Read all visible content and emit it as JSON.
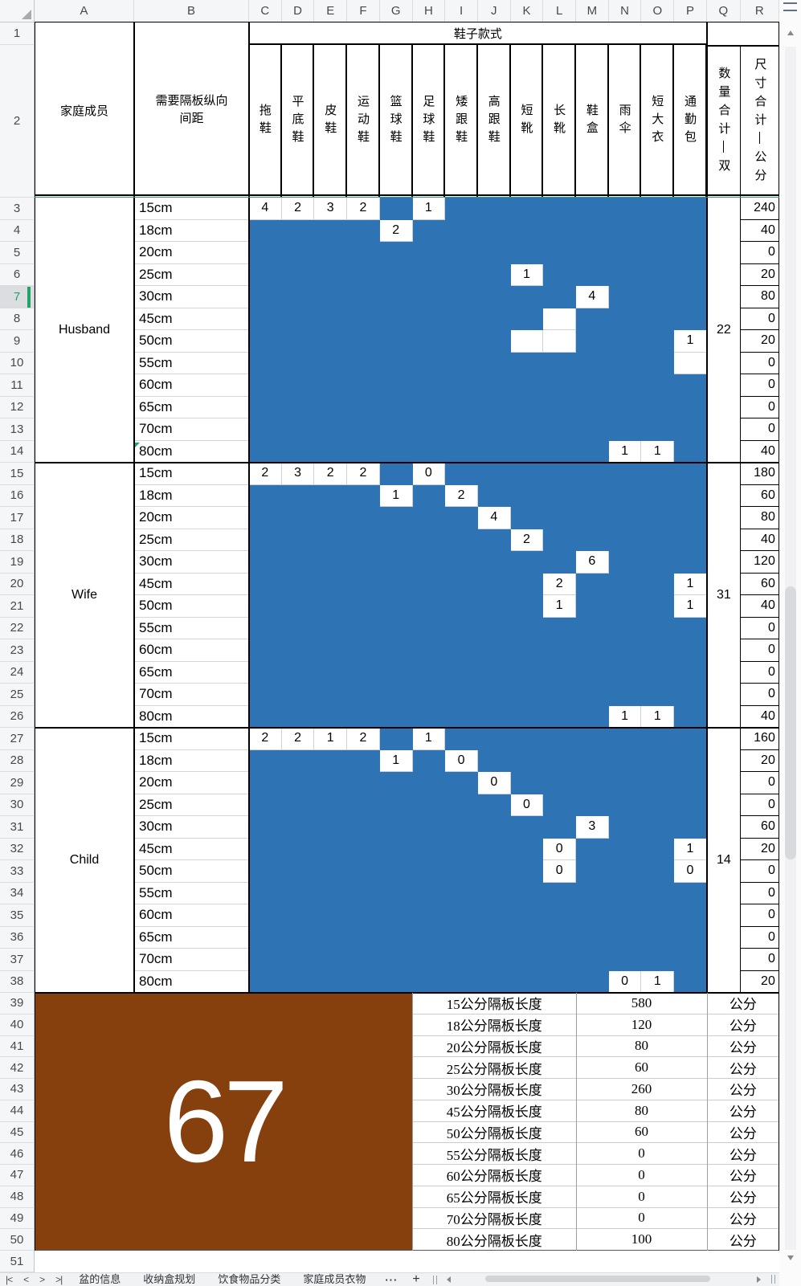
{
  "sheet": {
    "columns": [
      "A",
      "B",
      "C",
      "D",
      "E",
      "F",
      "G",
      "H",
      "I",
      "J",
      "K",
      "L",
      "M",
      "N",
      "O",
      "P",
      "Q",
      "R"
    ],
    "row_count": 51,
    "selected_row": 7,
    "header": {
      "group_title": "鞋子款式",
      "member_label": "家庭成员",
      "spacing_label": "需要隔板纵向间距",
      "shoe_types": [
        "拖鞋",
        "平底鞋",
        "皮鞋",
        "运动鞋",
        "篮球鞋",
        "足球鞋",
        "矮跟鞋",
        "高跟鞋",
        "短靴",
        "长靴",
        "鞋盒",
        "雨伞",
        "短大衣",
        "通勤包"
      ],
      "qty_total_label": "数量合计—双",
      "size_total_label": "尺寸合计—公分"
    },
    "spacings": [
      "15cm",
      "18cm",
      "20cm",
      "25cm",
      "30cm",
      "45cm",
      "50cm",
      "55cm",
      "60cm",
      "65cm",
      "70cm",
      "80cm"
    ],
    "members": [
      {
        "name": "Husband",
        "qty_total": 22,
        "sizes": [
          240,
          40,
          0,
          20,
          80,
          0,
          20,
          0,
          0,
          0,
          0,
          40
        ],
        "matrix": [
          [
            4,
            2,
            3,
            2,
            null,
            1,
            null,
            null,
            null,
            null,
            null,
            null,
            null,
            null
          ],
          [
            null,
            null,
            null,
            null,
            2,
            null,
            null,
            null,
            null,
            null,
            null,
            null,
            null,
            null
          ],
          [
            null,
            null,
            null,
            null,
            null,
            null,
            null,
            null,
            null,
            null,
            null,
            null,
            null,
            null
          ],
          [
            null,
            null,
            null,
            null,
            null,
            null,
            null,
            null,
            1,
            null,
            null,
            null,
            null,
            null
          ],
          [
            null,
            null,
            null,
            null,
            null,
            null,
            null,
            null,
            null,
            null,
            4,
            null,
            null,
            null
          ],
          [
            null,
            null,
            null,
            null,
            null,
            null,
            null,
            null,
            null,
            "",
            null,
            null,
            null,
            null
          ],
          [
            null,
            null,
            null,
            null,
            null,
            null,
            null,
            null,
            "",
            "",
            null,
            null,
            null,
            1
          ],
          [
            null,
            null,
            null,
            null,
            null,
            null,
            null,
            null,
            null,
            null,
            null,
            null,
            null,
            ""
          ],
          [
            null,
            null,
            null,
            null,
            null,
            null,
            null,
            null,
            null,
            null,
            null,
            null,
            null,
            null
          ],
          [
            null,
            null,
            null,
            null,
            null,
            null,
            null,
            null,
            null,
            null,
            null,
            null,
            null,
            null
          ],
          [
            null,
            null,
            null,
            null,
            null,
            null,
            null,
            null,
            null,
            null,
            null,
            null,
            null,
            null
          ],
          [
            null,
            null,
            null,
            null,
            null,
            null,
            null,
            null,
            null,
            null,
            null,
            1,
            1,
            null
          ]
        ]
      },
      {
        "name": "Wife",
        "qty_total": 31,
        "sizes": [
          180,
          60,
          80,
          40,
          120,
          60,
          40,
          0,
          0,
          0,
          0,
          40
        ],
        "matrix": [
          [
            2,
            3,
            2,
            2,
            null,
            0,
            null,
            null,
            null,
            null,
            null,
            null,
            null,
            null
          ],
          [
            null,
            null,
            null,
            null,
            1,
            null,
            2,
            null,
            null,
            null,
            null,
            null,
            null,
            null
          ],
          [
            null,
            null,
            null,
            null,
            null,
            null,
            null,
            4,
            null,
            null,
            null,
            null,
            null,
            null
          ],
          [
            null,
            null,
            null,
            null,
            null,
            null,
            null,
            null,
            2,
            null,
            null,
            null,
            null,
            null
          ],
          [
            null,
            null,
            null,
            null,
            null,
            null,
            null,
            null,
            null,
            null,
            6,
            null,
            null,
            null
          ],
          [
            null,
            null,
            null,
            null,
            null,
            null,
            null,
            null,
            null,
            2,
            null,
            null,
            null,
            1
          ],
          [
            null,
            null,
            null,
            null,
            null,
            null,
            null,
            null,
            null,
            1,
            null,
            null,
            null,
            1
          ],
          [
            null,
            null,
            null,
            null,
            null,
            null,
            null,
            null,
            null,
            null,
            null,
            null,
            null,
            null
          ],
          [
            null,
            null,
            null,
            null,
            null,
            null,
            null,
            null,
            null,
            null,
            null,
            null,
            null,
            null
          ],
          [
            null,
            null,
            null,
            null,
            null,
            null,
            null,
            null,
            null,
            null,
            null,
            null,
            null,
            null
          ],
          [
            null,
            null,
            null,
            null,
            null,
            null,
            null,
            null,
            null,
            null,
            null,
            null,
            null,
            null
          ],
          [
            null,
            null,
            null,
            null,
            null,
            null,
            null,
            null,
            null,
            null,
            null,
            1,
            1,
            null
          ]
        ]
      },
      {
        "name": "Child",
        "qty_total": 14,
        "sizes": [
          160,
          20,
          0,
          0,
          60,
          20,
          0,
          0,
          0,
          0,
          0,
          20
        ],
        "matrix": [
          [
            2,
            2,
            1,
            2,
            null,
            1,
            null,
            null,
            null,
            null,
            null,
            null,
            null,
            null
          ],
          [
            null,
            null,
            null,
            null,
            1,
            null,
            0,
            null,
            null,
            null,
            null,
            null,
            null,
            null
          ],
          [
            null,
            null,
            null,
            null,
            null,
            null,
            null,
            0,
            null,
            null,
            null,
            null,
            null,
            null
          ],
          [
            null,
            null,
            null,
            null,
            null,
            null,
            null,
            null,
            0,
            null,
            null,
            null,
            null,
            null
          ],
          [
            null,
            null,
            null,
            null,
            null,
            null,
            null,
            null,
            null,
            null,
            3,
            null,
            null,
            null
          ],
          [
            null,
            null,
            null,
            null,
            null,
            null,
            null,
            null,
            null,
            0,
            null,
            null,
            null,
            1
          ],
          [
            null,
            null,
            null,
            null,
            null,
            null,
            null,
            null,
            null,
            0,
            null,
            null,
            null,
            0
          ],
          [
            null,
            null,
            null,
            null,
            null,
            null,
            null,
            null,
            null,
            null,
            null,
            null,
            null,
            null
          ],
          [
            null,
            null,
            null,
            null,
            null,
            null,
            null,
            null,
            null,
            null,
            null,
            null,
            null,
            null
          ],
          [
            null,
            null,
            null,
            null,
            null,
            null,
            null,
            null,
            null,
            null,
            null,
            null,
            null,
            null
          ],
          [
            null,
            null,
            null,
            null,
            null,
            null,
            null,
            null,
            null,
            null,
            null,
            null,
            null,
            null
          ],
          [
            null,
            null,
            null,
            null,
            null,
            null,
            null,
            null,
            null,
            null,
            null,
            0,
            1,
            null
          ]
        ]
      }
    ],
    "summary": {
      "total": "67",
      "unit": "公分",
      "rows": [
        {
          "label": "15公分隔板长度",
          "value": 580
        },
        {
          "label": "18公分隔板长度",
          "value": 120
        },
        {
          "label": "20公分隔板长度",
          "value": 80
        },
        {
          "label": "25公分隔板长度",
          "value": 60
        },
        {
          "label": "30公分隔板长度",
          "value": 260
        },
        {
          "label": "45公分隔板长度",
          "value": 80
        },
        {
          "label": "50公分隔板长度",
          "value": 60
        },
        {
          "label": "55公分隔板长度",
          "value": 0
        },
        {
          "label": "60公分隔板长度",
          "value": 0
        },
        {
          "label": "65公分隔板长度",
          "value": 0
        },
        {
          "label": "70公分隔板长度",
          "value": 0
        },
        {
          "label": "80公分隔板长度",
          "value": 100
        }
      ]
    }
  },
  "tabbar": {
    "nav": {
      "first": "|<",
      "prev": "<",
      "next": ">",
      "last": ">|"
    },
    "tabs": [
      "盆的信息",
      "收纳盒规划",
      "饮食物品分类",
      "家庭成员衣物"
    ],
    "more": "···",
    "add": "+"
  },
  "colors": {
    "fill_blue": "#2E74B5",
    "fill_brown": "#86400E",
    "accent_green": "#21A567"
  }
}
